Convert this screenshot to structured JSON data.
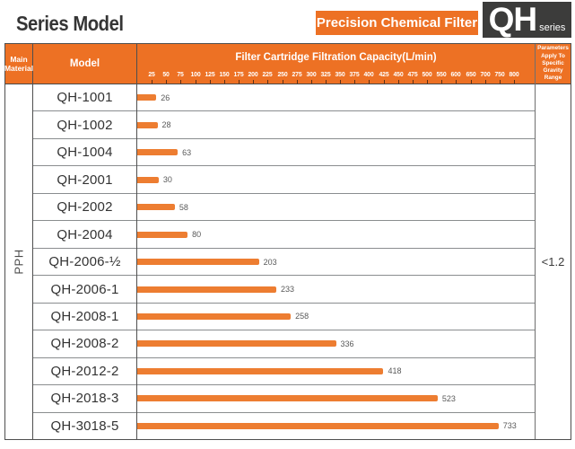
{
  "page_title": "Series Model",
  "banner": {
    "label": "Precision Chemical Filter"
  },
  "series_badge": {
    "code": "QH",
    "suffix": "series"
  },
  "colors": {
    "orange_header": "#ed7124",
    "orange_bar": "#ed7d31",
    "dark_badge": "#3c3c3b"
  },
  "table": {
    "headers": {
      "material": "Main Material",
      "model": "Model",
      "chart": "Filter Cartridge Filtration Capacity(L/min)",
      "params": "Parameters Apply To Specific Gravity Range"
    },
    "material_value": "PPH",
    "params_value": "<1.2"
  },
  "chart_data": {
    "type": "bar",
    "orientation": "horizontal",
    "title": "Filter Cartridge Filtration Capacity(L/min)",
    "categories": [
      "QH-1001",
      "QH-1002",
      "QH-1004",
      "QH-2001",
      "QH-2002",
      "QH-2004",
      "QH-2006-½",
      "QH-2006-1",
      "QH-2008-1",
      "QH-2008-2",
      "QH-2012-2",
      "QH-2018-3",
      "QH-3018-5"
    ],
    "values": [
      26,
      28,
      63,
      30,
      58,
      80,
      203,
      233,
      258,
      336,
      418,
      523,
      733
    ],
    "axis_ticks": [
      25,
      50,
      75,
      100,
      125,
      150,
      175,
      200,
      225,
      250,
      275,
      300,
      325,
      350,
      375,
      400,
      425,
      450,
      475,
      500,
      550,
      600,
      650,
      700,
      750,
      800
    ],
    "axis_scale_note": "25-unit steps up to 500, then 50-unit steps from 500 to 800; ticks equally spaced",
    "xlim": [
      0,
      800
    ],
    "grid": false,
    "legend": false
  }
}
